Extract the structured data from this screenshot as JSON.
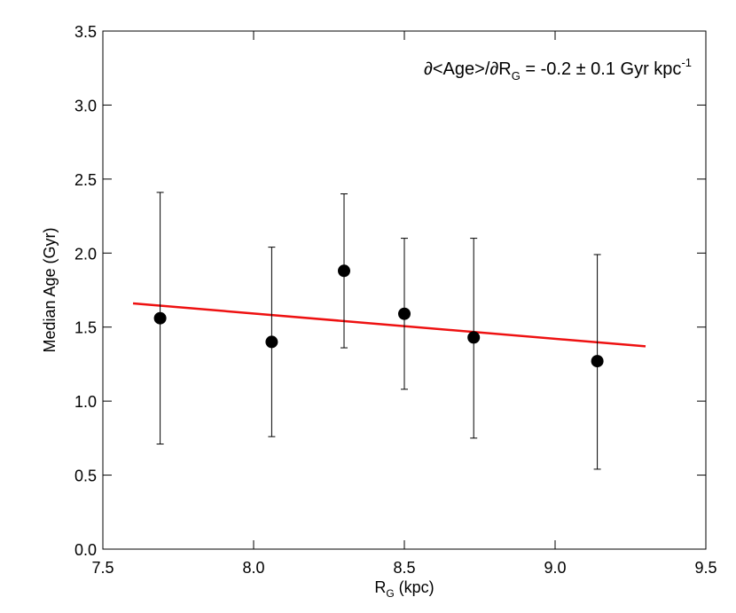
{
  "chart_data": {
    "type": "errorbar",
    "title_parts": [
      "∂<Age>/∂R",
      "G",
      " = -0.2 ± 0.1 Gyr kpc",
      "-1"
    ],
    "xlabel_parts": [
      "R",
      "G",
      " (kpc)"
    ],
    "ylabel": "Median Age (Gyr)",
    "x": [
      7.69,
      8.06,
      8.3,
      8.5,
      8.73,
      9.14
    ],
    "values": [
      1.56,
      1.4,
      1.88,
      1.59,
      1.43,
      1.27
    ],
    "lower": [
      0.71,
      0.76,
      1.36,
      1.08,
      0.75,
      0.54
    ],
    "upper": [
      2.41,
      2.04,
      2.4,
      2.1,
      2.1,
      1.99
    ],
    "color": "#000000",
    "fit": {
      "x": [
        7.6,
        9.3
      ],
      "values": [
        1.66,
        1.37
      ],
      "color": "#ee1111"
    },
    "xlim": [
      7.5,
      9.5
    ],
    "xticks": [
      7.5,
      {
        "value": 8,
        "label": "8.0"
      },
      8.5,
      {
        "value": 9,
        "label": "9.0"
      },
      9.5
    ],
    "ylim": [
      0,
      3.5
    ],
    "yticks": [
      {
        "value": 0,
        "label": "0.0"
      },
      0.5,
      {
        "value": 1,
        "label": "1.0"
      },
      1.5,
      {
        "value": 2,
        "label": "2.0"
      },
      2.5,
      {
        "value": 3,
        "label": "3.0"
      },
      3.5
    ],
    "grid": false
  }
}
